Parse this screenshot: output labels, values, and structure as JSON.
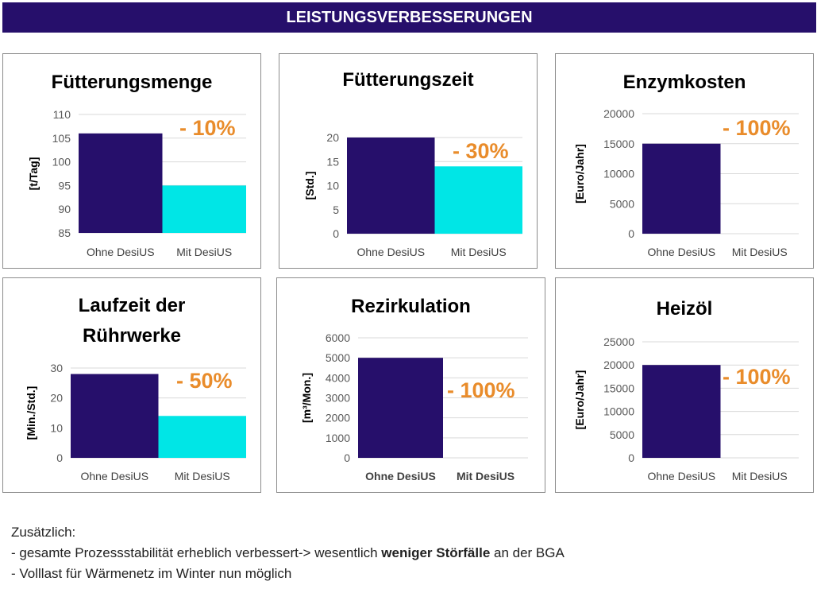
{
  "header": {
    "title": "LEISTUNGSVERBESSERUNGEN"
  },
  "colors": {
    "header": "#260f6b",
    "ohne": "#260f6b",
    "mit": "#00e6e6",
    "pct": "#e98c2b"
  },
  "chart_data": [
    {
      "type": "bar",
      "title": "Fütterungsmenge",
      "ylabel": "[t/Tag]",
      "categories": [
        "Ohne DesiUS",
        "Mit DesiUS"
      ],
      "values": [
        106,
        95
      ],
      "ylim": [
        85,
        110
      ],
      "yticks": [
        85,
        90,
        95,
        100,
        105,
        110
      ],
      "annotation": "- 10%",
      "grid": true
    },
    {
      "type": "bar",
      "title": "Fütterungszeit",
      "ylabel": "[Std.]",
      "categories": [
        "Ohne DesiUS",
        "Mit DesiUS"
      ],
      "values": [
        20,
        14
      ],
      "ylim": [
        0,
        20
      ],
      "yticks": [
        0,
        5,
        10,
        15,
        20
      ],
      "annotation": "- 30%",
      "grid": true
    },
    {
      "type": "bar",
      "title": "Enzymkosten",
      "ylabel": "[Euro/Jahr]",
      "categories": [
        "Ohne DesiUS",
        "Mit DesiUS"
      ],
      "values": [
        15000,
        0
      ],
      "ylim": [
        0,
        20000
      ],
      "yticks": [
        0,
        5000,
        10000,
        15000,
        20000
      ],
      "annotation": "- 100%",
      "grid": true
    },
    {
      "type": "bar",
      "title": "Laufzeit der Rührwerke",
      "title_lines": [
        "Laufzeit der",
        "Rührwerke"
      ],
      "ylabel": "[Min./Std.]",
      "categories": [
        "Ohne DesiUS",
        "Mit DesiUS"
      ],
      "values": [
        28,
        14
      ],
      "ylim": [
        0,
        30
      ],
      "yticks": [
        0,
        10,
        20,
        30
      ],
      "annotation": "- 50%",
      "grid": true
    },
    {
      "type": "bar",
      "title": "Rezirkulation",
      "ylabel": "[m³/Mon.]",
      "categories": [
        "Ohne DesiUS",
        "Mit DesiUS"
      ],
      "values": [
        5000,
        0
      ],
      "ylim": [
        0,
        6000
      ],
      "yticks": [
        0,
        1000,
        2000,
        3000,
        4000,
        5000,
        6000
      ],
      "annotation": "- 100%",
      "grid": true
    },
    {
      "type": "bar",
      "title": "Heizöl",
      "ylabel": "[Euro/Jahr]",
      "categories": [
        "Ohne DesiUS",
        "Mit DesiUS"
      ],
      "values": [
        20000,
        0
      ],
      "ylim": [
        0,
        25000
      ],
      "yticks": [
        0,
        5000,
        10000,
        15000,
        20000,
        25000
      ],
      "annotation": "- 100%",
      "grid": true
    }
  ],
  "footer": {
    "heading": "Zusätzlich:",
    "line1_pre": "- gesamte Prozessstabilität erheblich verbessert-> wesentlich ",
    "line1_bold": "weniger Störfälle",
    "line1_post": " an der BGA",
    "line2": "- Volllast für Wärmenetz im Winter nun möglich"
  }
}
